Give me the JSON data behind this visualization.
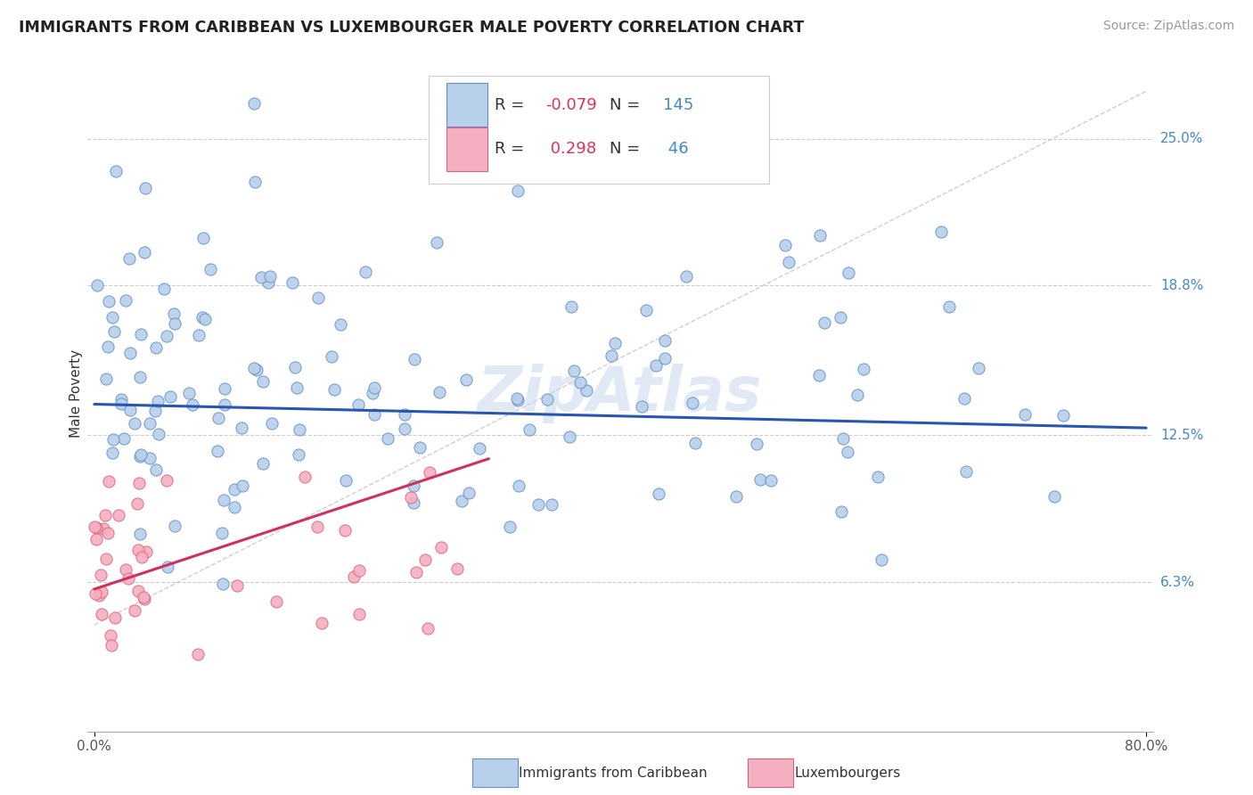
{
  "title": "IMMIGRANTS FROM CARIBBEAN VS LUXEMBOURGER MALE POVERTY CORRELATION CHART",
  "source": "Source: ZipAtlas.com",
  "ylabel": "Male Poverty",
  "legend_label1": "Immigrants from Caribbean",
  "legend_label2": "Luxembourgers",
  "R1": -0.079,
  "N1": 145,
  "R2": 0.298,
  "N2": 46,
  "color_blue_fill": "#b8d0ea",
  "color_blue_edge": "#6090c8",
  "color_pink_fill": "#f4b0c0",
  "color_pink_edge": "#e06080",
  "color_blue_line": "#2855b0",
  "color_pink_line": "#d03060",
  "color_dashed": "#c8c0c0",
  "ytick_vals": [
    0.063,
    0.125,
    0.188,
    0.25
  ],
  "ytick_labels": [
    "6.3%",
    "12.5%",
    "18.8%",
    "25.0%"
  ],
  "xmin": 0.0,
  "xmax": 0.8,
  "ymin": 0.0,
  "ymax": 0.285,
  "blue_line_x": [
    0.0,
    0.8
  ],
  "blue_line_y": [
    0.138,
    0.128
  ],
  "pink_line_x": [
    0.0,
    0.3
  ],
  "pink_line_y": [
    0.06,
    0.115
  ],
  "dashed_line_x": [
    0.0,
    0.8
  ],
  "dashed_line_y": [
    0.045,
    0.27
  ]
}
